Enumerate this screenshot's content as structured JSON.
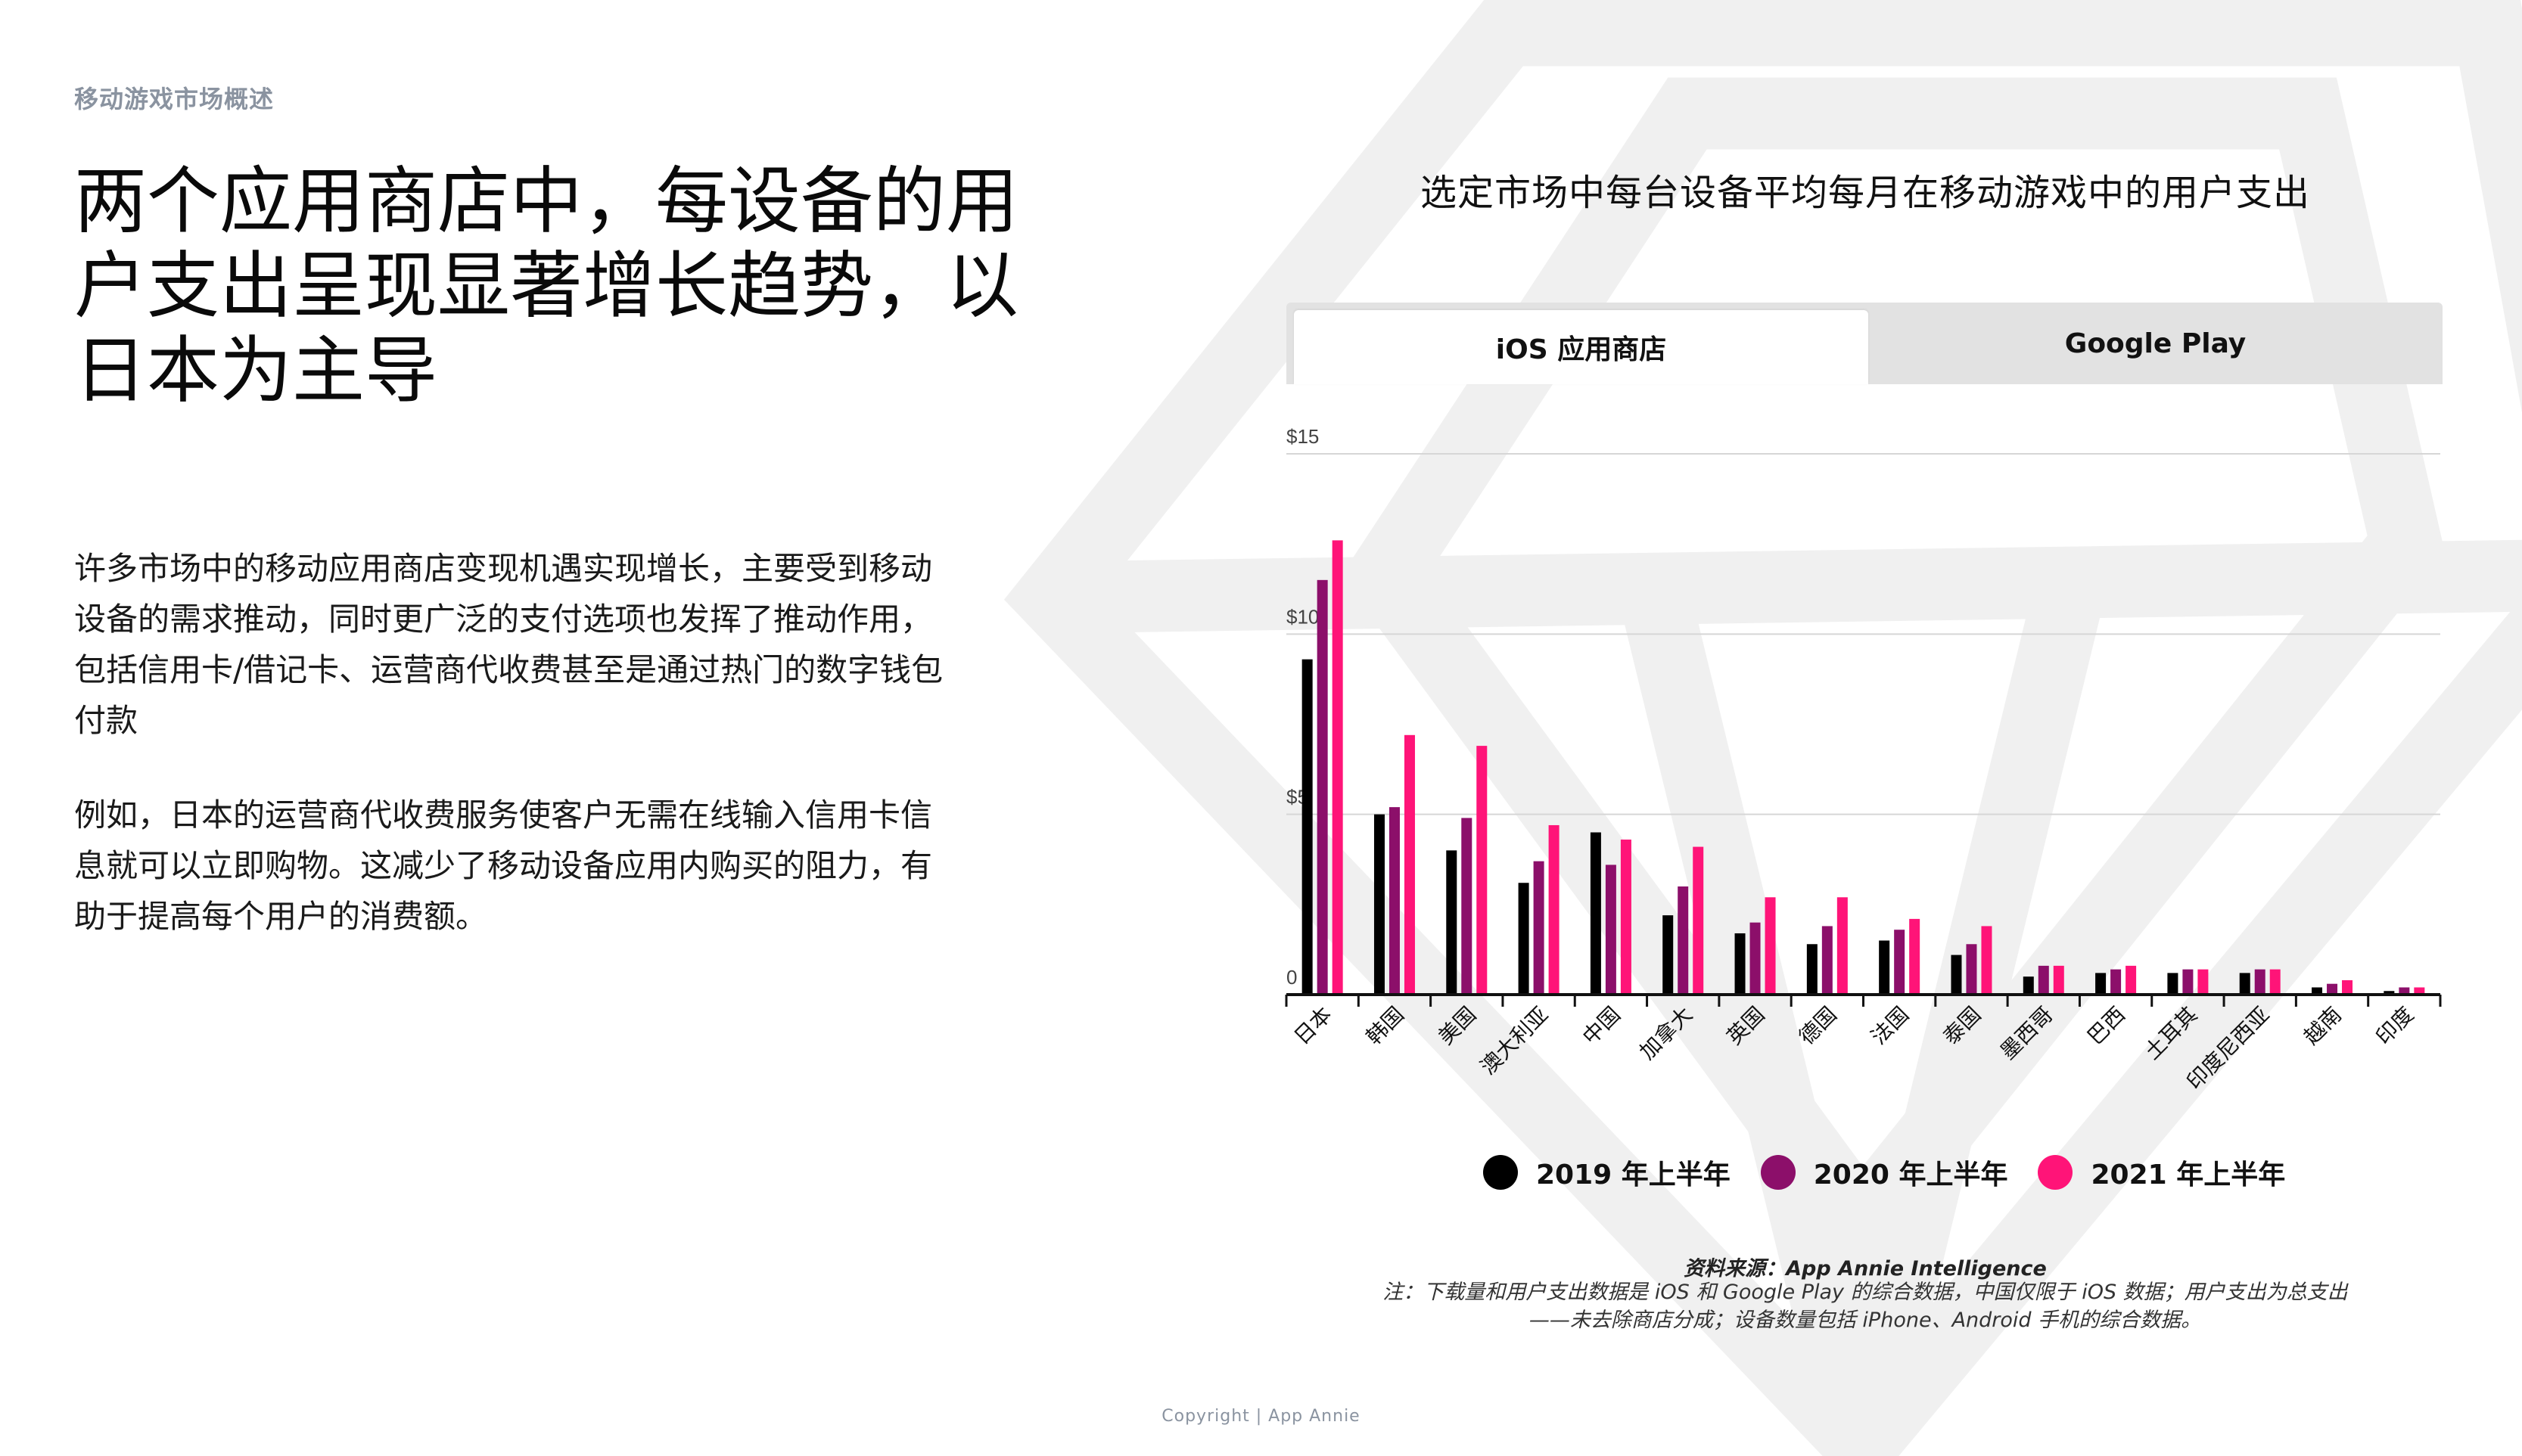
{
  "page": {
    "section_label": "移动游戏市场概述",
    "headline": "两个应用商店中，每设备的用户支出呈现显著增长趋势，以日本为主导",
    "paragraphs": [
      "许多市场中的移动应用商店变现机遇实现增长，主要受到移动设备的需求推动，同时更广泛的支付选项也发挥了推动作用，包括信用卡/借记卡、运营商代收费甚至是通过热门的数字钱包付款",
      "例如，日本的运营商代收费服务使客户无需在线输入信用卡信息就可以立即购物。这减少了移动设备应用内购买的阻力，有助于提高每个用户的消费额。"
    ],
    "copyright": "Copyright | App Annie"
  },
  "chart": {
    "tabs": [
      {
        "label": "iOS 应用商店",
        "active": true
      },
      {
        "label": "Google Play",
        "active": false
      }
    ],
    "source": "资料来源：App Annie Intelligence",
    "note": "注：下载量和用户支出数据是 iOS 和 Google Play 的综合数据，中国仅限于 iOS 数据；用户支出为总支出——未去除商店分成；设备数量包括 iPhone、Android 手机的综合数据。"
  },
  "chart_data": {
    "type": "bar",
    "title": "选定市场中每台设备平均每月在移动游戏中的用户支出",
    "categories": [
      "日本",
      "韩国",
      "美国",
      "澳大利亚",
      "中国",
      "加拿大",
      "英国",
      "德国",
      "法国",
      "泰国",
      "墨西哥",
      "巴西",
      "土耳其",
      "印度尼西亚",
      "越南",
      "印度"
    ],
    "series": [
      {
        "name": "2019 年上半年",
        "color": "#000000",
        "values": [
          9.3,
          5.0,
          4.0,
          3.1,
          4.5,
          2.2,
          1.7,
          1.4,
          1.5,
          1.1,
          0.5,
          0.6,
          0.6,
          0.6,
          0.2,
          0.1
        ]
      },
      {
        "name": "2020 年上半年",
        "color": "#8c0f6a",
        "values": [
          11.5,
          5.2,
          4.9,
          3.7,
          3.6,
          3.0,
          2.0,
          1.9,
          1.8,
          1.4,
          0.8,
          0.7,
          0.7,
          0.7,
          0.3,
          0.2
        ]
      },
      {
        "name": "2021 年上半年",
        "color": "#ff1478",
        "values": [
          12.6,
          7.2,
          6.9,
          4.7,
          4.3,
          4.1,
          2.7,
          2.7,
          2.1,
          1.9,
          0.8,
          0.8,
          0.7,
          0.7,
          0.4,
          0.2
        ]
      }
    ],
    "y_ticks": [
      {
        "value": 0,
        "label": "0"
      },
      {
        "value": 5,
        "label": "$5"
      },
      {
        "value": 10,
        "label": "$10"
      },
      {
        "value": 15,
        "label": "$15"
      }
    ],
    "ylim": [
      0,
      15
    ],
    "xlabel": "",
    "ylabel": "",
    "grid": true,
    "legend": "bottom"
  }
}
